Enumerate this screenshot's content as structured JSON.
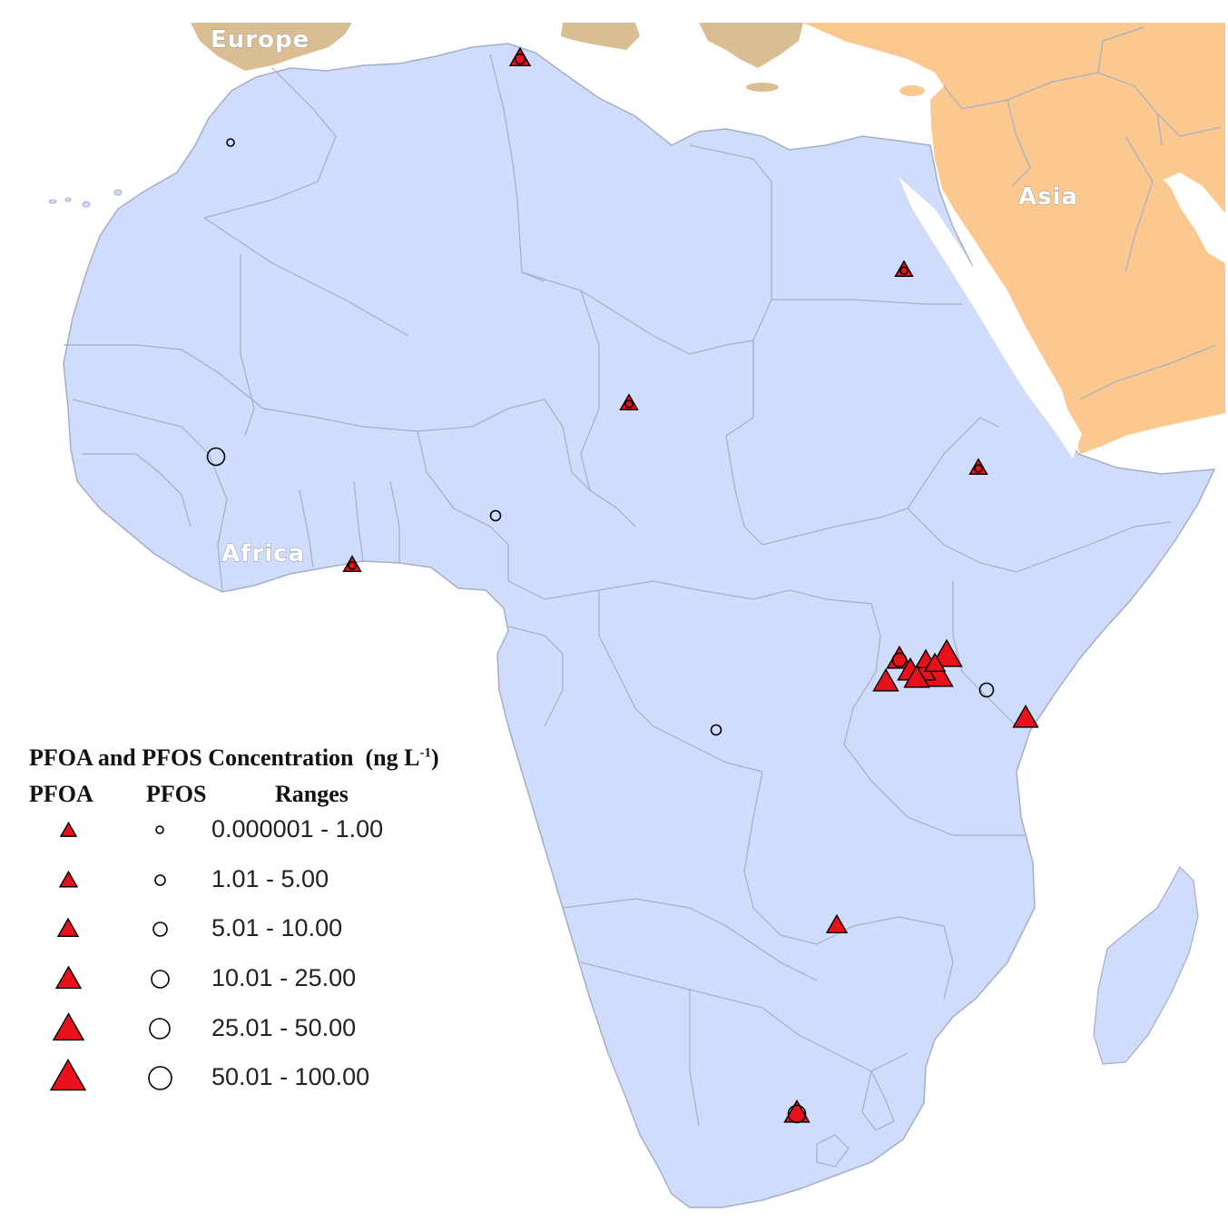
{
  "labels": {
    "europe": "Europe",
    "asia": "Asia",
    "africa": "Africa"
  },
  "colors": {
    "land_africa": "#cfdcfb",
    "border": "#a3aec7",
    "asia": "#fbc88f",
    "europe": "#d9be93",
    "sea": "#ffffff",
    "pfoa_marker": "#e8101a",
    "pfos_marker": "#000000"
  },
  "legend": {
    "title": "PFOA and PFOS Concentration",
    "unit_prefix": "(ng L",
    "unit_exponent": "-1",
    "unit_suffix": ")",
    "col_pfoa": "PFOA",
    "col_pfos": "PFOS",
    "col_ranges": "Ranges",
    "ranges": [
      {
        "label": "0.000001 - 1.00",
        "pfoa_icon": "red-triangle",
        "pfos_icon": "black-circle"
      },
      {
        "label": "1.01 - 5.00",
        "pfoa_icon": "red-triangle",
        "pfos_icon": "black-circle"
      },
      {
        "label": "5.01 - 10.00",
        "pfoa_icon": "red-triangle",
        "pfos_icon": "black-circle"
      },
      {
        "label": "10.01 - 25.00",
        "pfoa_icon": "red-triangle",
        "pfos_icon": "black-circle"
      },
      {
        "label": "25.01 - 50.00",
        "pfoa_icon": "red-triangle",
        "pfos_icon": "black-circle"
      },
      {
        "label": "50.01 - 100.00",
        "pfoa_icon": "red-triangle",
        "pfos_icon": "black-circle"
      }
    ]
  },
  "sites": [
    {
      "site": "tunisia",
      "pfoa_class": 3,
      "pfos_class": 2
    },
    {
      "site": "morocco",
      "pfos_class": 1
    },
    {
      "site": "egypt",
      "pfoa_class": 2,
      "pfos_class": 1
    },
    {
      "site": "chad",
      "pfoa_class": 2,
      "pfos_class": 1
    },
    {
      "site": "mali",
      "pfos_class": 4
    },
    {
      "site": "ethiopia",
      "pfoa_class": 2,
      "pfos_class": 1
    },
    {
      "site": "nigeria",
      "pfos_class": 2
    },
    {
      "site": "ghana",
      "pfoa_class": 2,
      "pfos_class": 1
    },
    {
      "site": "lake-victoria-1",
      "pfoa_class": 4,
      "pfos_class": 3
    },
    {
      "site": "lake-victoria-2",
      "pfoa_class": 5
    },
    {
      "site": "lake-victoria-3",
      "pfoa_class": 5
    },
    {
      "site": "lake-victoria-4",
      "pfoa_class": 4
    },
    {
      "site": "lake-victoria-5",
      "pfoa_class": 4
    },
    {
      "site": "lake-victoria-6",
      "pfoa_class": 4
    },
    {
      "site": "lake-victoria-7",
      "pfoa_class": 3
    },
    {
      "site": "lake-victoria-8",
      "pfoa_class": 3
    },
    {
      "site": "lake-victoria-9",
      "pfoa_class": 4
    },
    {
      "site": "kenya-inland",
      "pfos_class": 3
    },
    {
      "site": "kenya-coast",
      "pfoa_class": 4
    },
    {
      "site": "congo",
      "pfos_class": 2
    },
    {
      "site": "zimbabwe",
      "pfoa_class": 3
    },
    {
      "site": "south-africa",
      "pfoa_class": 4,
      "pfos_class": 4
    }
  ]
}
